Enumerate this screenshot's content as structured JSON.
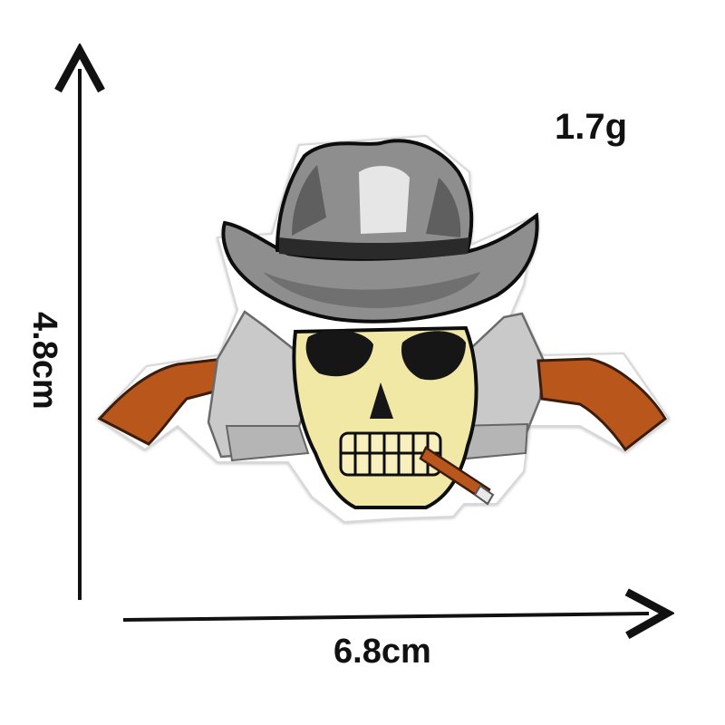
{
  "dimensions": {
    "height": "4.8cm",
    "width": "6.8cm"
  },
  "weight": "1.7g",
  "product": {
    "subject": "cowboy skull embroidered patch with crossed revolvers and cigar",
    "colors": {
      "hat": "#8e8e8e",
      "hat_shadow": "#5f5f5f",
      "skull": "#f2e8a6",
      "outline": "#111111",
      "grip": "#b8561c",
      "gun_metal": "#c9c9c9",
      "patch_border": "#ffffff"
    }
  }
}
